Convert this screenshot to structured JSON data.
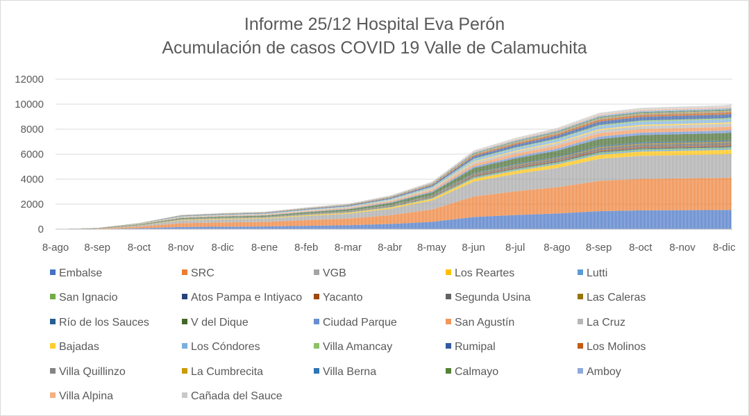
{
  "chart_data": {
    "type": "area",
    "title": "Informe 25/12 Hospital Eva Perón",
    "subtitle": "Acumulación de casos COVID 19 Valle de Calamuchita",
    "xlabel": "",
    "ylabel": "",
    "ylim": [
      0,
      12000
    ],
    "yticks": [
      "0",
      "2000",
      "4000",
      "6000",
      "8000",
      "10000",
      "12000"
    ],
    "xticks": [
      "8-ago",
      "8-sep",
      "8-oct",
      "8-nov",
      "8-dic",
      "8-ene",
      "8-feb",
      "8-mar",
      "8-abr",
      "8-may",
      "8-jun",
      "8-jul",
      "8-ago",
      "8-sep",
      "8-oct",
      "8-nov",
      "8-dic"
    ],
    "grid": true,
    "legend_position": "bottom",
    "stacked": true,
    "total_cumulative": [
      {
        "x": "8-ago",
        "y": 0
      },
      {
        "x": "8-sep",
        "y": 100
      },
      {
        "x": "8-oct",
        "y": 500
      },
      {
        "x": "8-nov",
        "y": 1150
      },
      {
        "x": "8-dic",
        "y": 1300
      },
      {
        "x": "8-ene",
        "y": 1400
      },
      {
        "x": "8-feb",
        "y": 1750
      },
      {
        "x": "8-mar",
        "y": 2050
      },
      {
        "x": "8-abr",
        "y": 2700
      },
      {
        "x": "8-may",
        "y": 3800
      },
      {
        "x": "8-jun",
        "y": 6300
      },
      {
        "x": "8-jul",
        "y": 7300
      },
      {
        "x": "8-ago",
        "y": 8100
      },
      {
        "x": "8-sep",
        "y": 9300
      },
      {
        "x": "8-oct",
        "y": 9700
      },
      {
        "x": "8-nov",
        "y": 9800
      },
      {
        "x": "8-dic",
        "y": 9900
      },
      {
        "x": "end",
        "y": 10300
      }
    ],
    "series": [
      {
        "name": "Embalse",
        "color": "#4472c4",
        "share": 0.155
      },
      {
        "name": "SRC",
        "color": "#ed7d31",
        "share": 0.26
      },
      {
        "name": "VGB",
        "color": "#a5a5a5",
        "share": 0.19
      },
      {
        "name": "Los Reartes",
        "color": "#ffc000",
        "share": 0.035
      },
      {
        "name": "Lutti",
        "color": "#5b9bd5",
        "share": 0.01
      },
      {
        "name": "San Ignacio",
        "color": "#70ad47",
        "share": 0.01
      },
      {
        "name": "Atos Pampa e Intiyaco",
        "color": "#264478",
        "share": 0.008
      },
      {
        "name": "Yacanto",
        "color": "#9e480e",
        "share": 0.01
      },
      {
        "name": "Segunda Usina",
        "color": "#636363",
        "share": 0.02
      },
      {
        "name": "Las Caleras",
        "color": "#997300",
        "share": 0.008
      },
      {
        "name": "Río de los Sauces",
        "color": "#255e91",
        "share": 0.01
      },
      {
        "name": "V del Dique",
        "color": "#43682b",
        "share": 0.06
      },
      {
        "name": "Ciudad Parque",
        "color": "#698ed0",
        "share": 0.02
      },
      {
        "name": "San Agustín",
        "color": "#f1975a",
        "share": 0.03
      },
      {
        "name": "La Cruz",
        "color": "#b7b7b7",
        "share": 0.025
      },
      {
        "name": "Bajadas",
        "color": "#ffcd33",
        "share": 0.01
      },
      {
        "name": "Los Cóndores",
        "color": "#7cafdd",
        "share": 0.025
      },
      {
        "name": "Villa Amancay",
        "color": "#8cc168",
        "share": 0.01
      },
      {
        "name": "Rumipal",
        "color": "#335aa1",
        "share": 0.03
      },
      {
        "name": "Los Molinos",
        "color": "#c55a11",
        "share": 0.015
      },
      {
        "name": "Villa Quillinzo",
        "color": "#848484",
        "share": 0.008
      },
      {
        "name": "La Cumbrecita",
        "color": "#cc9a00",
        "share": 0.006
      },
      {
        "name": "Villa Berna",
        "color": "#2e75b6",
        "share": 0.006
      },
      {
        "name": "Calmayo",
        "color": "#548235",
        "share": 0.006
      },
      {
        "name": "Amboy",
        "color": "#8faadc",
        "share": 0.01
      },
      {
        "name": "Villa Alpina",
        "color": "#f4b183",
        "share": 0.008
      },
      {
        "name": "Cañada del Sauce",
        "color": "#c9c9c9",
        "share": 0.016
      }
    ]
  }
}
